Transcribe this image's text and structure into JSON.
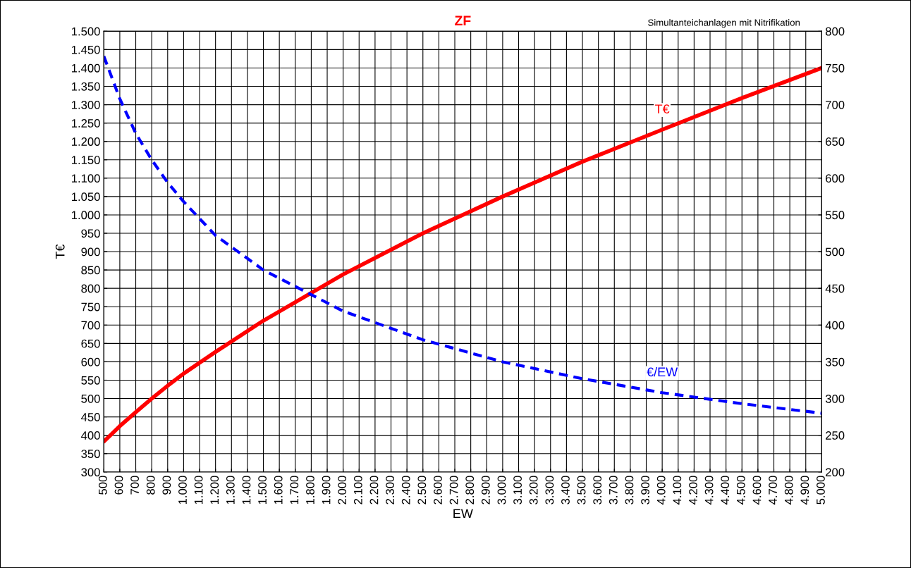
{
  "chart_data": {
    "type": "line",
    "title": "ZF",
    "subtitle": "Simultanteichanlagen mit Nitrifikation",
    "xlabel": "EW",
    "ylabel": "T€",
    "x": [
      500,
      600,
      700,
      800,
      900,
      1000,
      1200,
      1500,
      2000,
      2500,
      3000,
      3500,
      4000,
      4500,
      5000
    ],
    "series": [
      {
        "name": "T€",
        "color": "#ff0000",
        "line_style": "solid",
        "values": [
          383,
          425,
          463,
          500,
          535,
          568,
          627,
          712,
          838,
          950,
          1050,
          1145,
          1232,
          1318,
          1400
        ]
      },
      {
        "name": "€/EW",
        "color": "#0000ff",
        "line_style": "dashed",
        "axis": "y2",
        "values": [
          766,
          708,
          661,
          625,
          594,
          568,
          522,
          475,
          419,
          380,
          350,
          327,
          308,
          293,
          280
        ]
      }
    ],
    "xlim": [
      500,
      5000
    ],
    "xticks": [
      500,
      600,
      700,
      800,
      900,
      {
        "value": 1000,
        "label": "1.000"
      },
      {
        "value": 1100,
        "label": "1.100"
      },
      {
        "value": 1200,
        "label": "1.200"
      },
      {
        "value": 1300,
        "label": "1.300"
      },
      {
        "value": 1400,
        "label": "1.400"
      },
      {
        "value": 1500,
        "label": "1.500"
      },
      {
        "value": 1600,
        "label": "1.600"
      },
      {
        "value": 1700,
        "label": "1.700"
      },
      {
        "value": 1800,
        "label": "1.800"
      },
      {
        "value": 1900,
        "label": "1.900"
      },
      {
        "value": 2000,
        "label": "2.000"
      },
      {
        "value": 2100,
        "label": "2.100"
      },
      {
        "value": 2200,
        "label": "2.200"
      },
      {
        "value": 2300,
        "label": "2.300"
      },
      {
        "value": 2400,
        "label": "2.400"
      },
      {
        "value": 2500,
        "label": "2.500"
      },
      {
        "value": 2600,
        "label": "2.600"
      },
      {
        "value": 2700,
        "label": "2.700"
      },
      {
        "value": 2800,
        "label": "2.800"
      },
      {
        "value": 2900,
        "label": "2.900"
      },
      {
        "value": 3000,
        "label": "3.000"
      },
      {
        "value": 3100,
        "label": "3.100"
      },
      {
        "value": 3200,
        "label": "3.200"
      },
      {
        "value": 3300,
        "label": "3.300"
      },
      {
        "value": 3400,
        "label": "3.400"
      },
      {
        "value": 3500,
        "label": "3.500"
      },
      {
        "value": 3600,
        "label": "3.600"
      },
      {
        "value": 3700,
        "label": "3.700"
      },
      {
        "value": 3800,
        "label": "3.800"
      },
      {
        "value": 3900,
        "label": "3.900"
      },
      {
        "value": 4000,
        "label": "4.000"
      },
      {
        "value": 4100,
        "label": "4.100"
      },
      {
        "value": 4200,
        "label": "4.200"
      },
      {
        "value": 4300,
        "label": "4.300"
      },
      {
        "value": 4400,
        "label": "4.400"
      },
      {
        "value": 4500,
        "label": "4.500"
      },
      {
        "value": 4600,
        "label": "4.600"
      },
      {
        "value": 4700,
        "label": "4.700"
      },
      {
        "value": 4800,
        "label": "4.800"
      },
      {
        "value": 4900,
        "label": "4.900"
      },
      {
        "value": 5000,
        "label": "5.000"
      }
    ],
    "ylim": [
      300,
      1500
    ],
    "yticks": [
      300,
      350,
      400,
      450,
      500,
      550,
      600,
      650,
      700,
      750,
      800,
      850,
      900,
      950,
      {
        "value": 1000,
        "label": "1.000"
      },
      {
        "value": 1050,
        "label": "1.050"
      },
      {
        "value": 1100,
        "label": "1.100"
      },
      {
        "value": 1150,
        "label": "1.150"
      },
      {
        "value": 1200,
        "label": "1.200"
      },
      {
        "value": 1250,
        "label": "1.250"
      },
      {
        "value": 1300,
        "label": "1.300"
      },
      {
        "value": 1350,
        "label": "1.350"
      },
      {
        "value": 1400,
        "label": "1.400"
      },
      {
        "value": 1450,
        "label": "1.450"
      },
      {
        "value": 1500,
        "label": "1.500"
      }
    ],
    "y2lim": [
      200,
      800
    ],
    "y2ticks": [
      200,
      250,
      300,
      350,
      400,
      450,
      500,
      550,
      600,
      650,
      700,
      750,
      800
    ],
    "grid": true,
    "legend": false,
    "marker": "none"
  }
}
